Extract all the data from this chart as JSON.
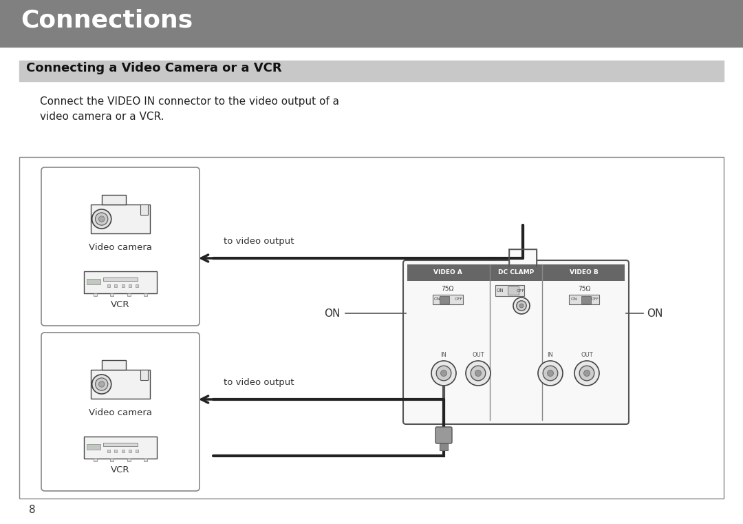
{
  "page_bg": "#ffffff",
  "header_bg": "#808080",
  "header_text": "Connections",
  "header_text_color": "#ffffff",
  "header_font_size": 26,
  "subheader_bg": "#c8c8c8",
  "subheader_text": "Connecting a Video Camera or a VCR",
  "subheader_font_size": 13,
  "body_text": "Connect the VIDEO IN connector to the video output of a\nvideo camera or a VCR.",
  "body_font_size": 11,
  "page_number": "8",
  "label_video_camera": "Video camera",
  "label_vcr": "VCR",
  "label_to_video_output": "to video output",
  "label_on_left": "ON",
  "label_on_right": "ON",
  "panel_header_bg": "#555555",
  "panel_header_labels": [
    "VIDEO A",
    "DC CLAMP",
    "VIDEO B"
  ],
  "panel_io_labels_a": [
    "IN",
    "OUT"
  ],
  "panel_io_labels_b": [
    "IN",
    "OUT"
  ],
  "switch_labels": [
    "ON",
    "OFF"
  ],
  "ohm_label": "75Ω"
}
